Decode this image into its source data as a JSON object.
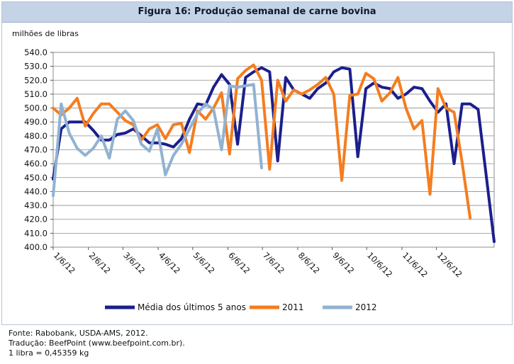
{
  "chart_data": {
    "type": "line",
    "title": "Figura 16: Produção semanal de carne bovina",
    "ylabel": "milhões de libras",
    "ylim": [
      400,
      540
    ],
    "yticks": [
      "540.0",
      "530.0",
      "520.0",
      "510.0",
      "500.0",
      "490.0",
      "480.0",
      "470.0",
      "460.0",
      "450.0",
      "440.0",
      "430.0",
      "420.0",
      "410.0",
      "400.0"
    ],
    "grid": true,
    "legend_position": "bottom",
    "x_tick_labels": [
      "1/6/12",
      "2/6/12",
      "3/6/12",
      "4/6/12",
      "5/6/12",
      "6/6/12",
      "7/6/12",
      "8/6/12",
      "9/6/12",
      "10/6/12",
      "11/6/12",
      "12/6/12"
    ],
    "x_tick_weeks": [
      0,
      4.4,
      8.7,
      13.1,
      17.4,
      21.8,
      26.1,
      30.5,
      34.8,
      39.1,
      43.5,
      47.8
    ],
    "series": [
      {
        "name": "Média dos últimos 5 anos",
        "color": "#1b1f8c",
        "values": [
          449,
          485,
          490,
          490,
          490,
          484,
          477,
          477,
          481,
          482,
          485,
          480,
          475,
          475,
          474,
          472,
          478,
          492,
          503,
          502,
          515,
          524,
          517,
          474,
          522,
          526,
          529,
          526,
          462,
          522,
          513,
          510,
          507,
          514,
          518,
          526,
          529,
          528,
          465,
          514,
          518,
          515,
          514,
          507,
          510,
          515,
          514,
          505,
          497,
          503,
          460,
          503,
          503,
          499,
          452,
          404
        ]
      },
      {
        "name": "2011",
        "color": "#f47d20",
        "values": [
          500,
          495,
          500,
          507,
          487,
          496,
          503,
          503,
          497,
          491,
          488,
          477,
          485,
          488,
          478,
          488,
          489,
          468,
          498,
          492,
          500,
          511,
          467,
          521,
          527,
          531,
          520,
          456,
          520,
          505,
          513,
          510,
          513,
          517,
          522,
          510,
          448,
          509,
          510,
          525,
          521,
          505,
          511,
          522,
          500,
          485,
          491,
          438,
          514,
          500,
          497,
          461,
          421
        ]
      },
      {
        "name": "2012",
        "color": "#91b2d2",
        "values": [
          437,
          503,
          482,
          471,
          466,
          471,
          480,
          464,
          492,
          498,
          491,
          474,
          469,
          485,
          452,
          466,
          474,
          485,
          496,
          503,
          499,
          470,
          516,
          515,
          516,
          517,
          457
        ]
      }
    ]
  }
}
